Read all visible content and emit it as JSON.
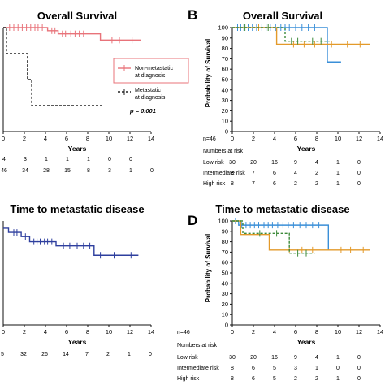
{
  "panels": {
    "A": {
      "title": "Overall Survival",
      "xlabel": "Years",
      "x_ticks": [
        "0",
        "2",
        "4",
        "6",
        "8",
        "10",
        "12",
        "14"
      ],
      "legend": [
        {
          "label_line1": "Non-metastatic",
          "label_line2": "at diagnosis",
          "color": "#e8737a"
        },
        {
          "label_line1": "Metastatic",
          "label_line2": "at diagnosis",
          "color": "#222222"
        }
      ],
      "p_value": "p = 0.001",
      "risk_rows": [
        [
          "4",
          "3",
          "1",
          "1",
          "1",
          "0",
          "0"
        ],
        [
          "46",
          "34",
          "28",
          "15",
          "8",
          "3",
          "1",
          "0"
        ]
      ]
    },
    "B": {
      "letter": "B",
      "title": "Overall Survival",
      "ylabel": "Probability of Survival",
      "xlabel": "Years",
      "y_ticks": [
        "0",
        "10",
        "20",
        "30",
        "40",
        "50",
        "60",
        "70",
        "80",
        "90",
        "100"
      ],
      "x_ticks": [
        "0",
        "2",
        "4",
        "6",
        "8",
        "10",
        "12",
        "14"
      ],
      "n_label": "n=46",
      "risk_header": "Numbers at risk",
      "risk_rows": [
        {
          "label": "Low risk",
          "values": [
            "30",
            "20",
            "16",
            "9",
            "4",
            "1",
            "0"
          ]
        },
        {
          "label": "Intermediate risk",
          "values": [
            "8",
            "7",
            "6",
            "4",
            "2",
            "1",
            "0"
          ]
        },
        {
          "label": "High risk",
          "values": [
            "8",
            "7",
            "6",
            "2",
            "2",
            "1",
            "0"
          ]
        }
      ]
    },
    "C": {
      "title": "Time to metastatic disease",
      "xlabel": "Years",
      "x_ticks": [
        "0",
        "2",
        "4",
        "6",
        "8",
        "10",
        "12",
        "14"
      ],
      "risk_row": [
        "5",
        "32",
        "26",
        "14",
        "7",
        "2",
        "1",
        "0"
      ]
    },
    "D": {
      "letter": "D",
      "title": "Time to metastatic disease",
      "ylabel": "Probability of Survival",
      "xlabel": "Years",
      "y_ticks": [
        "0",
        "10",
        "20",
        "30",
        "40",
        "50",
        "60",
        "70",
        "80",
        "90",
        "100"
      ],
      "x_ticks": [
        "0",
        "2",
        "4",
        "6",
        "8",
        "10",
        "12",
        "14"
      ],
      "n_label": "n=46",
      "risk_header": "Numbers at risk",
      "risk_rows": [
        {
          "label": "Low risk",
          "values": [
            "30",
            "20",
            "16",
            "9",
            "4",
            "1",
            "0"
          ]
        },
        {
          "label": "Intermediate risk",
          "values": [
            "8",
            "6",
            "5",
            "3",
            "1",
            "0",
            "0"
          ]
        },
        {
          "label": "High risk",
          "values": [
            "8",
            "6",
            "5",
            "2",
            "2",
            "1",
            "0"
          ]
        }
      ]
    }
  },
  "chart_data": [
    {
      "panel": "A",
      "type": "line",
      "title": "Overall Survival",
      "xlabel": "Years",
      "xlim": [
        0,
        14
      ],
      "ylim": [
        0,
        100
      ],
      "series": [
        {
          "name": "Non-metastatic at diagnosis",
          "color": "#e8737a",
          "dash": false,
          "x": [
            0,
            4.2,
            5.2,
            9.2,
            13.0
          ],
          "y": [
            100,
            97,
            94,
            88,
            88
          ],
          "censor_x": [
            0.6,
            1.0,
            1.4,
            1.8,
            2.2,
            2.6,
            3.0,
            3.3,
            3.7,
            4.6,
            4.9,
            5.6,
            5.9,
            6.4,
            6.8,
            7.2,
            7.6,
            10.3,
            11.0,
            12.2
          ]
        },
        {
          "name": "Metastatic at diagnosis",
          "color": "#222222",
          "dash": true,
          "x": [
            0,
            0.3,
            2.3,
            2.7,
            9.5
          ],
          "y": [
            100,
            75,
            50,
            25,
            25
          ],
          "censor_x": []
        }
      ]
    },
    {
      "panel": "B",
      "type": "line",
      "title": "Overall Survival",
      "xlabel": "Years",
      "ylabel": "Probability of Survival",
      "xlim": [
        0,
        14
      ],
      "ylim": [
        0,
        100
      ],
      "series": [
        {
          "color": "#3a8fd8",
          "dash": false,
          "x": [
            0,
            8.9,
            9.0,
            10.3
          ],
          "y": [
            100,
            100,
            67,
            67
          ],
          "censor_x": [
            0.5,
            0.8,
            1.1,
            1.5,
            1.9,
            2.3,
            2.8,
            3.2,
            3.6,
            4.1,
            4.6,
            5.0,
            5.4,
            6.0,
            6.6,
            7.2,
            7.8
          ]
        },
        {
          "color": "#e39a2a",
          "dash": false,
          "x": [
            0,
            4.2,
            13.0
          ],
          "y": [
            100,
            84,
            84
          ],
          "censor_x": [
            2.5,
            5.8,
            6.8,
            7.8,
            9.4,
            10.9,
            12.1
          ]
        },
        {
          "color": "#3c8a3a",
          "dash": true,
          "x": [
            0,
            5.0,
            9.2
          ],
          "y": [
            100,
            87,
            87
          ],
          "censor_x": [
            1.2,
            3.4,
            5.6,
            6.2,
            7.6,
            8.4
          ]
        }
      ]
    },
    {
      "panel": "C",
      "type": "line",
      "title": "Time to metastatic disease",
      "xlabel": "Years",
      "xlim": [
        0,
        14
      ],
      "ylim": [
        0,
        100
      ],
      "series": [
        {
          "color": "#2e3f9e",
          "dash": false,
          "x": [
            0,
            0.5,
            1.7,
            2.5,
            5.0,
            8.6,
            12.8
          ],
          "y": [
            93,
            89,
            85,
            80,
            76,
            67,
            67
          ],
          "censor_x": [
            1.0,
            1.3,
            2.1,
            2.9,
            3.2,
            3.5,
            3.9,
            4.2,
            4.6,
            5.7,
            6.3,
            7.0,
            7.6,
            8.2,
            9.2,
            10.5,
            12.1
          ]
        }
      ]
    },
    {
      "panel": "D",
      "type": "line",
      "title": "Time to metastatic disease",
      "xlabel": "Years",
      "ylabel": "Probability of Survival",
      "xlim": [
        0,
        14
      ],
      "ylim": [
        0,
        100
      ],
      "series": [
        {
          "color": "#3a8fd8",
          "dash": false,
          "x": [
            0,
            0.6,
            8.7,
            9.1
          ],
          "y": [
            100,
            96,
            96,
            72
          ],
          "censor_x": [
            0.3,
            0.9,
            1.3,
            1.7,
            2.1,
            2.5,
            3.0,
            3.4,
            3.8,
            4.3,
            4.8,
            5.3,
            5.8,
            6.4,
            7.0,
            7.6,
            8.2
          ]
        },
        {
          "color": "#e39a2a",
          "dash": false,
          "x": [
            0,
            0.8,
            3.5,
            13.0
          ],
          "y": [
            100,
            87,
            72,
            72
          ],
          "censor_x": [
            5.4,
            6.6,
            7.6,
            10.3,
            11.2,
            12.4
          ]
        },
        {
          "color": "#3c8a3a",
          "dash": true,
          "x": [
            0,
            1.0,
            5.0,
            5.4,
            7.8
          ],
          "y": [
            100,
            88,
            88,
            69,
            69
          ],
          "censor_x": [
            2.6,
            4.2,
            6.2,
            7.0
          ]
        }
      ]
    }
  ]
}
